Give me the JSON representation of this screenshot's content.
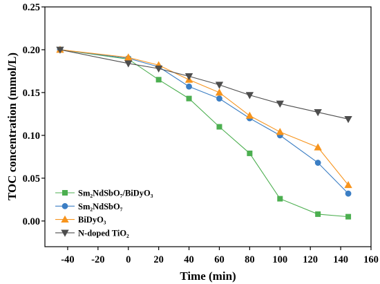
{
  "chart_data": {
    "type": "line",
    "xlabel": "Time (min)",
    "ylabel": "TOC concentration (mmol/L)",
    "xlim": [
      -55,
      160
    ],
    "ylim": [
      -0.03,
      0.25
    ],
    "xticks": [
      -40,
      -20,
      0,
      20,
      40,
      60,
      80,
      100,
      120,
      140,
      160
    ],
    "xtick_labels": [
      "-40",
      "-20",
      "0",
      "20",
      "40",
      "60",
      "80",
      "100",
      "120",
      "140",
      "160"
    ],
    "yticks": [
      0,
      0.05,
      0.1,
      0.15,
      0.2,
      0.25
    ],
    "ytick_labels": [
      "0.00",
      "0.05",
      "0.10",
      "0.15",
      "0.20",
      "0.25"
    ],
    "grid": false,
    "legend": "bottom-left",
    "x": [
      -45,
      0,
      20,
      40,
      60,
      80,
      100,
      125,
      145
    ],
    "series": [
      {
        "name": "Sm₂NdSbO₇/BiDyO₃",
        "color": "#4caf50",
        "marker": "square",
        "values": [
          0.2,
          0.189,
          0.165,
          0.143,
          0.11,
          0.079,
          0.026,
          0.008,
          0.005
        ]
      },
      {
        "name": "Sm₂NdSbO₇",
        "color": "#3b7ec4",
        "marker": "circle",
        "values": [
          0.2,
          0.19,
          0.18,
          0.157,
          0.143,
          0.12,
          0.1,
          0.068,
          0.032
        ]
      },
      {
        "name": "BiDyO₃",
        "color": "#f7941d",
        "marker": "triangle-up",
        "values": [
          0.2,
          0.191,
          0.182,
          0.165,
          0.15,
          0.123,
          0.104,
          0.086,
          0.042
        ]
      },
      {
        "name": "N-doped TiO₂",
        "color": "#4d4d4d",
        "marker": "triangle-down",
        "values": [
          0.2,
          0.184,
          0.178,
          0.169,
          0.159,
          0.147,
          0.137,
          0.127,
          0.119
        ]
      }
    ]
  }
}
